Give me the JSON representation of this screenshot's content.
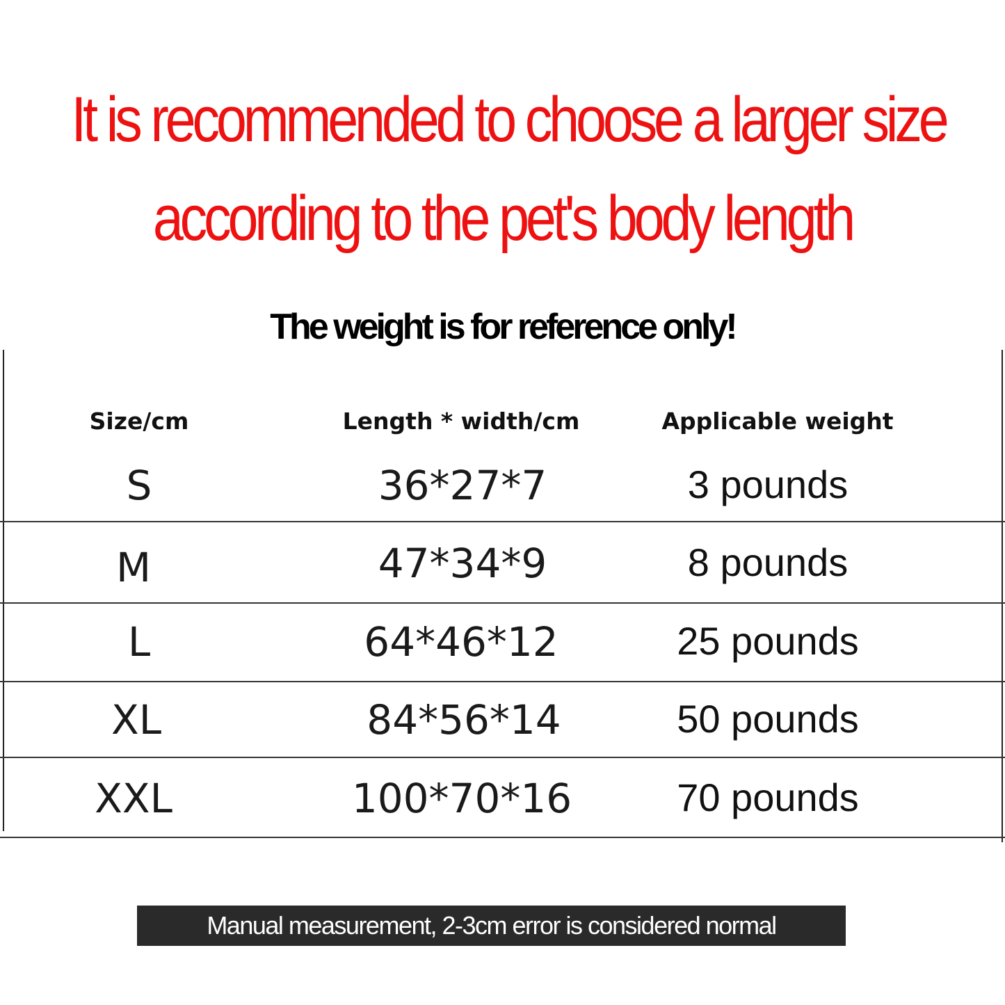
{
  "heading": {
    "line1": "It is recommended to choose a larger size",
    "line2": "according to the pet's body length",
    "color": "#ee1111"
  },
  "subheading": "The weight is for reference only!",
  "table": {
    "headers": [
      "Size/cm",
      "Length * width/cm",
      "Applicable weight"
    ],
    "rows": [
      {
        "size": "S",
        "dims": "36*27*7",
        "weight": "3 pounds"
      },
      {
        "size": "M",
        "dims": "47*34*9",
        "weight": "8 pounds"
      },
      {
        "size": "L",
        "dims": "64*46*12",
        "weight": "25 pounds"
      },
      {
        "size": "XL",
        "dims": "84*56*14",
        "weight": "50 pounds"
      },
      {
        "size": "XXL",
        "dims": "100*70*16",
        "weight": "70 pounds"
      }
    ]
  },
  "footer_note": "Manual measurement, 2-3cm error is considered normal"
}
